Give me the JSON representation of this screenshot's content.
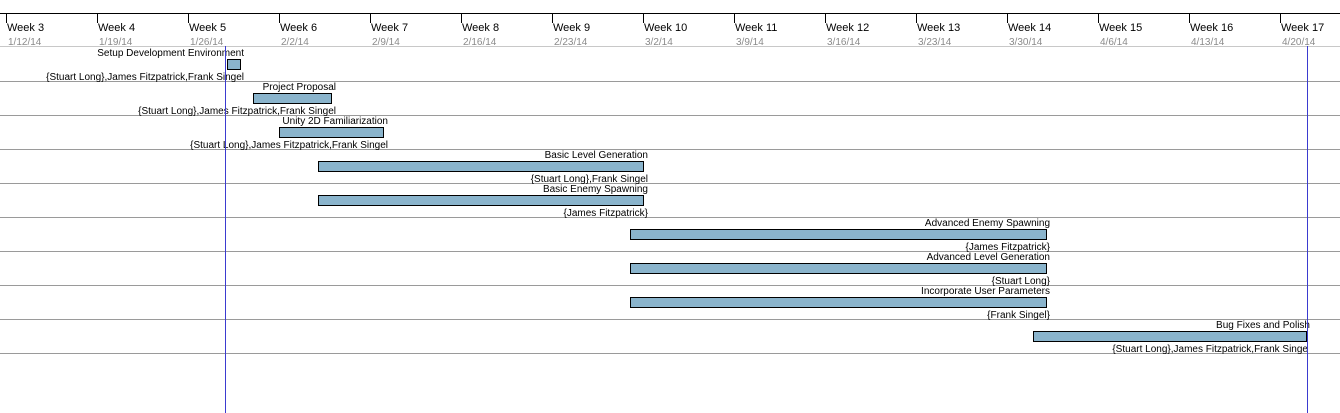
{
  "timescale": {
    "weeks": [
      {
        "label": "Week 3",
        "date": "1/12/14"
      },
      {
        "label": "Week 4",
        "date": "1/19/14"
      },
      {
        "label": "Week 5",
        "date": "1/26/14"
      },
      {
        "label": "Week 6",
        "date": "2/2/14"
      },
      {
        "label": "Week 7",
        "date": "2/9/14"
      },
      {
        "label": "Week 8",
        "date": "2/16/14"
      },
      {
        "label": "Week 9",
        "date": "2/23/14"
      },
      {
        "label": "Week 10",
        "date": "3/2/14"
      },
      {
        "label": "Week 11",
        "date": "3/9/14"
      },
      {
        "label": "Week 12",
        "date": "3/16/14"
      },
      {
        "label": "Week 13",
        "date": "3/23/14"
      },
      {
        "label": "Week 14",
        "date": "3/30/14"
      },
      {
        "label": "Week 15",
        "date": "4/6/14"
      },
      {
        "label": "Week 16",
        "date": "4/13/14"
      },
      {
        "label": "Week 17",
        "date": "4/20/14"
      }
    ]
  },
  "tasks": [
    {
      "name": "Setup Development Environment",
      "resources": "{Stuart Long},James Fitzpatrick,Frank Singel"
    },
    {
      "name": "Project Proposal",
      "resources": "{Stuart Long},James Fitzpatrick,Frank Singel"
    },
    {
      "name": "Unity 2D Familiarization",
      "resources": "{Stuart Long},James Fitzpatrick,Frank Singel"
    },
    {
      "name": "Basic Level Generation",
      "resources": "{Stuart Long},Frank Singel"
    },
    {
      "name": "Basic Enemy Spawning",
      "resources": "{James Fitzpatrick}"
    },
    {
      "name": "Advanced Enemy Spawning",
      "resources": "{James Fitzpatrick}"
    },
    {
      "name": "Advanced Level Generation",
      "resources": "{Stuart Long}"
    },
    {
      "name": "Incorporate User Parameters",
      "resources": "{Frank Singel}"
    },
    {
      "name": "Bug Fixes and Polish",
      "resources": "{Stuart Long},James Fitzpatrick,Frank Singe"
    }
  ],
  "colors": {
    "bar_fill": "#8ab4cc",
    "marker_line": "#3b3bd0"
  }
}
